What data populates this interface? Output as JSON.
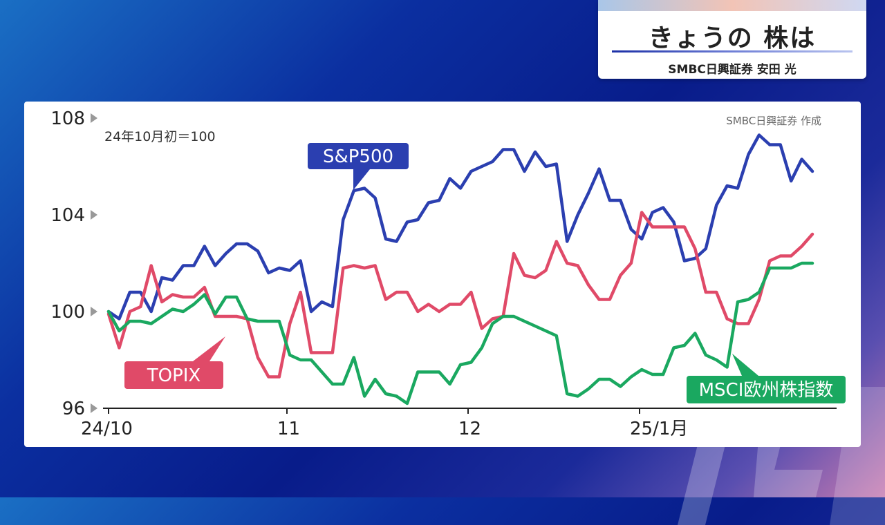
{
  "title_card": {
    "title": "きょうの 株は",
    "byline": "SMBC日興証券 安田 光"
  },
  "chart_data": {
    "type": "line",
    "note": "24年10月初＝100",
    "credit": "SMBC日興証券 作成",
    "ylim": [
      96,
      108
    ],
    "y_ticks": [
      "108",
      "104",
      "100",
      "96"
    ],
    "x_ticks": [
      "24/10",
      "11",
      "12",
      "25/1月"
    ],
    "series": [
      {
        "name": "S&P500",
        "color": "#2b3fb0",
        "values": [
          100.0,
          99.7,
          100.8,
          100.8,
          100.0,
          101.4,
          101.3,
          101.9,
          101.9,
          102.7,
          101.9,
          102.4,
          102.8,
          102.8,
          102.5,
          101.6,
          101.8,
          101.7,
          102.1,
          100.0,
          100.4,
          100.2,
          103.8,
          105.0,
          105.1,
          104.7,
          103.0,
          102.9,
          103.7,
          103.8,
          104.5,
          104.6,
          105.5,
          105.1,
          105.8,
          106.0,
          106.2,
          106.7,
          106.7,
          105.8,
          106.6,
          106.0,
          106.1,
          102.9,
          104.0,
          104.9,
          105.9,
          104.6,
          104.6,
          103.4,
          103.0,
          104.1,
          104.3,
          103.7,
          102.1,
          102.2,
          102.6,
          104.4,
          105.2,
          105.1,
          106.5,
          107.3,
          106.9,
          106.9,
          105.4,
          106.3,
          105.8
        ]
      },
      {
        "name": "TOPIX",
        "color": "#e04a68",
        "values": [
          99.9,
          98.5,
          100.0,
          100.2,
          101.9,
          100.4,
          100.7,
          100.6,
          100.6,
          101.0,
          99.8,
          99.8,
          99.8,
          99.7,
          98.1,
          97.3,
          97.3,
          99.5,
          100.8,
          98.3,
          98.3,
          98.3,
          101.8,
          101.9,
          101.8,
          101.9,
          100.5,
          100.8,
          100.8,
          100.0,
          100.3,
          100.0,
          100.3,
          100.3,
          100.8,
          99.3,
          99.7,
          99.8,
          102.4,
          101.5,
          101.4,
          101.7,
          102.9,
          102.0,
          101.9,
          101.1,
          100.5,
          100.5,
          101.5,
          102.0,
          104.1,
          103.5,
          103.5,
          103.5,
          103.5,
          102.6,
          100.8,
          100.8,
          99.7,
          99.5,
          99.5,
          100.5,
          102.1,
          102.3,
          102.3,
          102.7,
          103.2
        ]
      },
      {
        "name": "MSCI欧州株指数",
        "color": "#1aa860",
        "values": [
          100.0,
          99.2,
          99.6,
          99.6,
          99.5,
          99.8,
          100.1,
          100.0,
          100.3,
          100.7,
          99.9,
          100.6,
          100.6,
          99.7,
          99.6,
          99.6,
          99.6,
          98.2,
          98.0,
          98.0,
          97.5,
          97.0,
          97.0,
          98.1,
          96.5,
          97.2,
          96.6,
          96.5,
          96.2,
          97.5,
          97.5,
          97.5,
          97.0,
          97.8,
          97.9,
          98.5,
          99.5,
          99.8,
          99.8,
          99.6,
          99.4,
          99.2,
          99.0,
          96.6,
          96.5,
          96.8,
          97.2,
          97.2,
          96.9,
          97.3,
          97.6,
          97.4,
          97.4,
          98.5,
          98.6,
          99.1,
          98.2,
          98.0,
          97.7,
          100.4,
          100.5,
          100.8,
          101.8,
          101.8,
          101.8,
          102.0,
          102.0
        ]
      }
    ]
  }
}
